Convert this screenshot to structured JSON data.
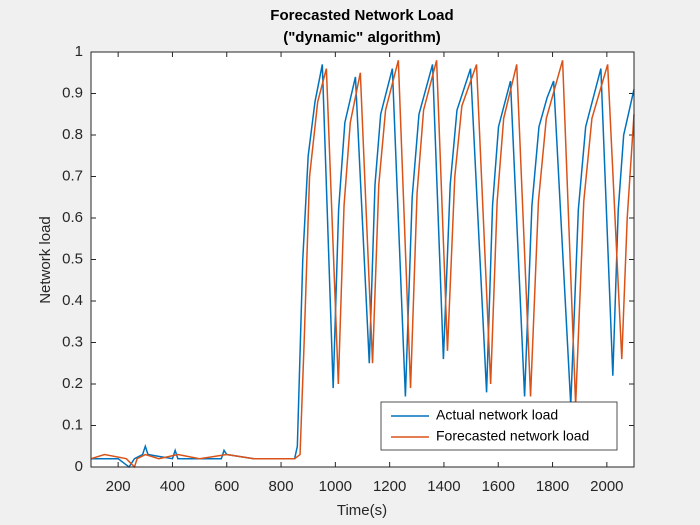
{
  "chart_data": {
    "type": "line",
    "title": [
      "Forecasted Network Load",
      "(\"dynamic\" algorithm)"
    ],
    "xlabel": "Time(s)",
    "ylabel": "Network load",
    "xlim": [
      100,
      2100
    ],
    "xticks": [
      200,
      400,
      600,
      800,
      1000,
      1200,
      1400,
      1600,
      1800,
      2000
    ],
    "ylim": [
      0,
      1
    ],
    "yticks": [
      0,
      0.1,
      0.2,
      0.3,
      0.4,
      0.5,
      0.6,
      0.7,
      0.8,
      0.9,
      1
    ],
    "legend": "lower right",
    "series": [
      {
        "name": "Actual network load",
        "color": "#0072bd",
        "x": [
          100,
          200,
          240,
          260,
          290,
          300,
          310,
          400,
          410,
          420,
          500,
          580,
          590,
          600,
          700,
          800,
          850,
          860,
          880,
          900,
          925,
          952,
          992,
          1012,
          1035,
          1074,
          1125,
          1146,
          1167,
          1210,
          1258,
          1283,
          1308,
          1358,
          1398,
          1423,
          1448,
          1498,
          1557,
          1579,
          1601,
          1645,
          1697,
          1724,
          1750,
          1780,
          1804,
          1867,
          1895,
          1922,
          1978,
          2022,
          2042,
          2062,
          2100
        ],
        "values": [
          0.02,
          0.02,
          0.0,
          0.02,
          0.03,
          0.05,
          0.03,
          0.02,
          0.04,
          0.02,
          0.02,
          0.02,
          0.04,
          0.03,
          0.02,
          0.02,
          0.02,
          0.05,
          0.5,
          0.75,
          0.88,
          0.97,
          0.19,
          0.62,
          0.83,
          0.94,
          0.25,
          0.68,
          0.85,
          0.96,
          0.17,
          0.65,
          0.85,
          0.97,
          0.26,
          0.68,
          0.86,
          0.96,
          0.18,
          0.63,
          0.82,
          0.93,
          0.17,
          0.63,
          0.82,
          0.89,
          0.93,
          0.15,
          0.62,
          0.82,
          0.96,
          0.22,
          0.62,
          0.8,
          0.91
        ]
      },
      {
        "name": "Forecasted network load",
        "color": "#d95319",
        "x": [
          100,
          150,
          230,
          260,
          270,
          300,
          350,
          420,
          500,
          600,
          700,
          850,
          870,
          885,
          905,
          935,
          967,
          1011,
          1032,
          1055,
          1092,
          1137,
          1160,
          1185,
          1232,
          1277,
          1301,
          1325,
          1373,
          1413,
          1440,
          1466,
          1520,
          1572,
          1596,
          1620,
          1668,
          1719,
          1748,
          1777,
          1837,
          1885,
          1915,
          1945,
          2003,
          2055,
          2075,
          2100
        ],
        "values": [
          0.02,
          0.03,
          0.02,
          0.0,
          0.02,
          0.03,
          0.02,
          0.03,
          0.02,
          0.03,
          0.02,
          0.02,
          0.03,
          0.3,
          0.7,
          0.88,
          0.96,
          0.2,
          0.63,
          0.83,
          0.95,
          0.25,
          0.68,
          0.86,
          0.98,
          0.19,
          0.66,
          0.86,
          0.98,
          0.28,
          0.7,
          0.87,
          0.97,
          0.2,
          0.64,
          0.84,
          0.97,
          0.17,
          0.64,
          0.84,
          0.98,
          0.15,
          0.64,
          0.84,
          0.97,
          0.26,
          0.6,
          0.85
        ]
      }
    ]
  }
}
